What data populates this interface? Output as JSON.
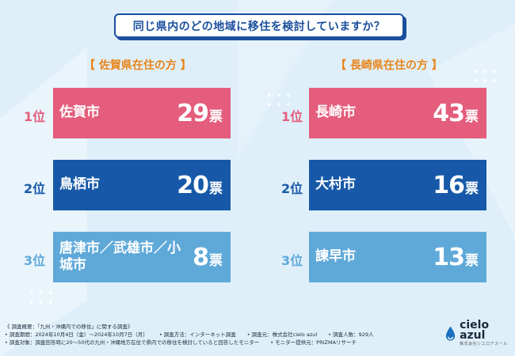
{
  "title": "同じ県内のどの地域に移住を検討していますか？",
  "colors": {
    "pink": "#e45d7c",
    "blue": "#1759a8",
    "light_blue": "#5fa9d9",
    "navy": "#1a4f9c",
    "orange": "#e8851a"
  },
  "saga": {
    "header": "【 佐賀県在住の方 】",
    "rows": [
      {
        "rank": "1位",
        "name": "佐賀市",
        "num": "29",
        "unit": "票"
      },
      {
        "rank": "2位",
        "name": "鳥栖市",
        "num": "20",
        "unit": "票"
      },
      {
        "rank": "3位",
        "name": "唐津市／武雄市／小城市",
        "num": "8",
        "unit": "票"
      }
    ]
  },
  "nagasaki": {
    "header": "【 長崎県在住の方 】",
    "rows": [
      {
        "rank": "1位",
        "name": "長崎市",
        "num": "43",
        "unit": "票"
      },
      {
        "rank": "2位",
        "name": "大村市",
        "num": "16",
        "unit": "票"
      },
      {
        "rank": "3位",
        "name": "諫早市",
        "num": "13",
        "unit": "票"
      }
    ]
  },
  "footer": {
    "line1": "《 調査概要：「九州・沖縄内での移住」に関する調査》",
    "period": "• 調査期間：2024年10月4日（金）〜2024年10月7日（月）",
    "method": "• 調査方法：インターネット調査",
    "agency": "• 調査元：株式会社cielo azul",
    "count": "• 調査人数：929人",
    "target": "• 調査対象：調査回答時に20〜50代の九州・沖縄地方在住で県内での移住を検討していると回答したモニター",
    "provider": "• モニター提供元：PRIZMAリサーチ"
  },
  "logo": {
    "name": "cielo azul",
    "sub": "株式会社シエロアスール"
  }
}
